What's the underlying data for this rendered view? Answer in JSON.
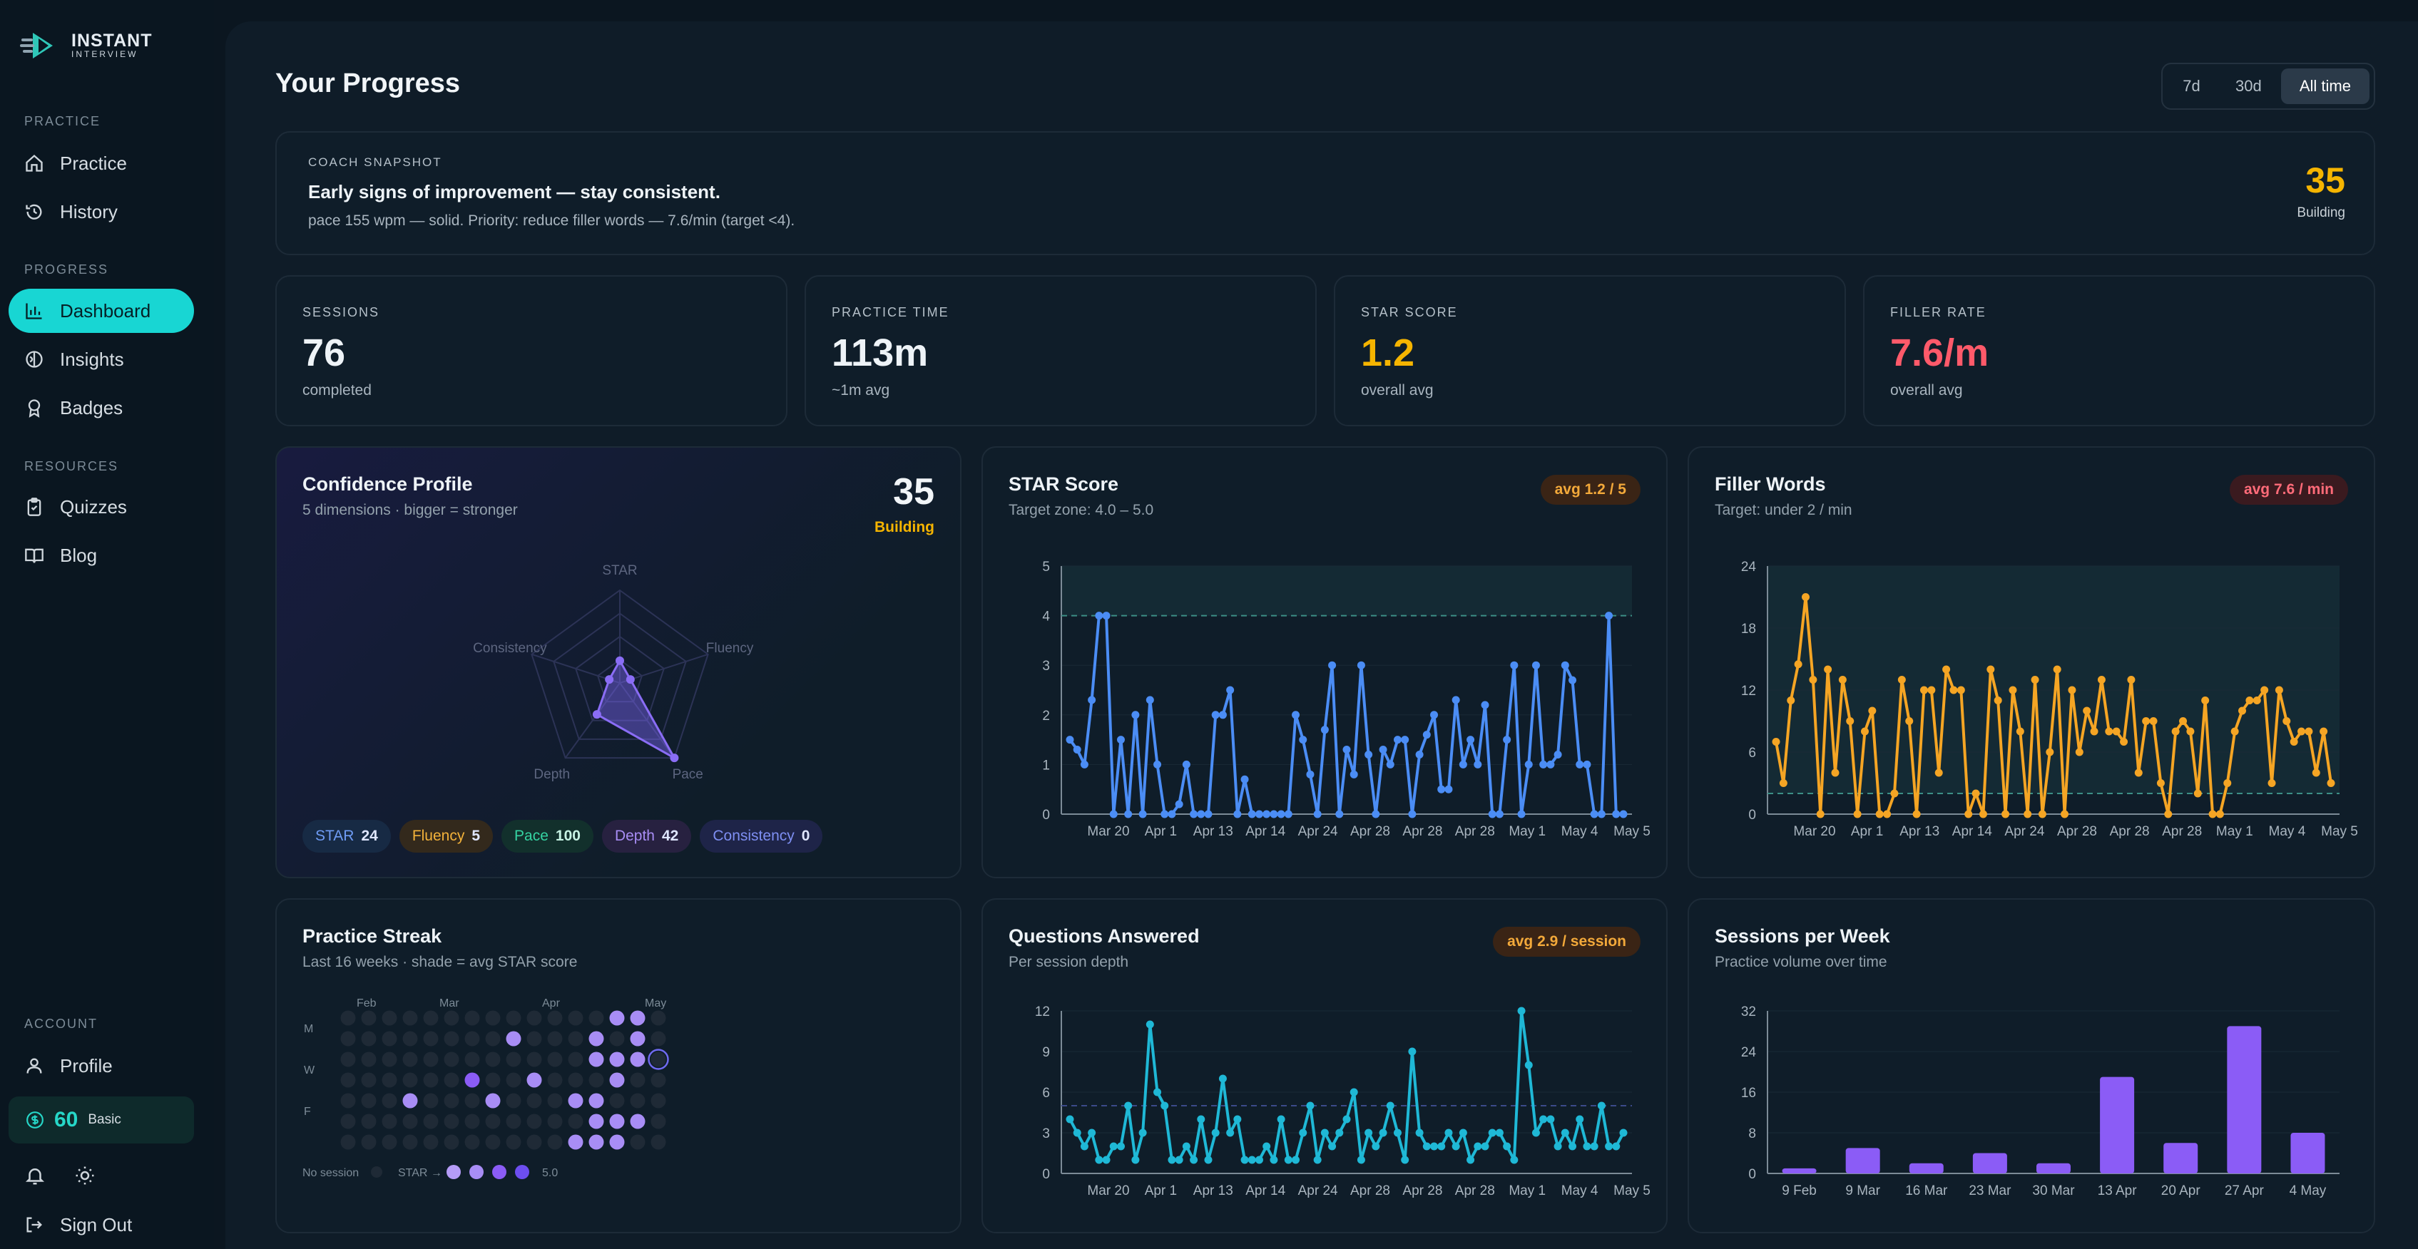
{
  "brand": {
    "name": "INSTANT",
    "sub": "INTERVIEW"
  },
  "sidebar": {
    "sections": {
      "practice": "PRACTICE",
      "progress": "PROGRESS",
      "resources": "RESOURCES",
      "account": "ACCOUNT"
    },
    "items": {
      "practice": "Practice",
      "history": "History",
      "dashboard": "Dashboard",
      "insights": "Insights",
      "badges": "Badges",
      "quizzes": "Quizzes",
      "blog": "Blog",
      "profile": "Profile",
      "signout": "Sign Out"
    },
    "credits": {
      "value": "60",
      "plan": "Basic"
    }
  },
  "header": {
    "title": "Your Progress",
    "ranges": [
      "7d",
      "30d",
      "All time"
    ],
    "active_range": "All time"
  },
  "snapshot": {
    "label": "COACH SNAPSHOT",
    "headline": "Early signs of improvement — stay consistent.",
    "detail": "pace 155 wpm — solid. Priority: reduce filler words — 7.6/min (target <4).",
    "score": "35",
    "score_label": "Building"
  },
  "stats": [
    {
      "label": "SESSIONS",
      "value": "76",
      "sub": "completed",
      "color": "#eef3f7"
    },
    {
      "label": "PRACTICE TIME",
      "value": "113m",
      "sub": "~1m avg",
      "color": "#eef3f7"
    },
    {
      "label": "STAR SCORE",
      "value": "1.2",
      "sub": "overall avg",
      "color": "#f5b400"
    },
    {
      "label": "FILLER RATE",
      "value": "7.6/m",
      "sub": "overall avg",
      "color": "#ff5a6a"
    }
  ],
  "confidence": {
    "title": "Confidence Profile",
    "subtitle": "5 dimensions · bigger = stronger",
    "score": "35",
    "score_label": "Building",
    "axes": [
      "STAR",
      "Fluency",
      "Pace",
      "Depth",
      "Consistency"
    ],
    "pills": [
      {
        "name": "STAR",
        "value": "24",
        "bg": "#172a44",
        "fg": "#6f9cf5"
      },
      {
        "name": "Fluency",
        "value": "5",
        "bg": "#33291c",
        "fg": "#f3b23a"
      },
      {
        "name": "Pace",
        "value": "100",
        "bg": "#12302c",
        "fg": "#35d3a2"
      },
      {
        "name": "Depth",
        "value": "42",
        "bg": "#272140",
        "fg": "#a88df5"
      },
      {
        "name": "Consistency",
        "value": "0",
        "bg": "#1e2448",
        "fg": "#7e8ff2"
      }
    ]
  },
  "chart_data": [
    {
      "type": "line",
      "title": "STAR Score",
      "subtitle": "Target zone: 4.0 – 5.0",
      "badge": "avg 1.2 / 5",
      "ylim": [
        0,
        5
      ],
      "yticks": [
        0,
        1,
        2,
        3,
        4,
        5
      ],
      "xticks": [
        "Mar 20",
        "Apr 1",
        "Apr 13",
        "Apr 14",
        "Apr 24",
        "Apr 28",
        "Apr 28",
        "Apr 28",
        "May 1",
        "May 4",
        "May 5"
      ],
      "target_line": 4,
      "values": [
        1.5,
        1.3,
        1,
        2.3,
        4,
        4,
        0,
        1.5,
        0,
        2,
        0,
        2.3,
        1,
        0,
        0,
        0.2,
        1,
        0,
        0,
        0,
        2,
        2,
        2.5,
        0,
        0.7,
        0,
        0,
        0,
        0,
        0,
        0,
        2,
        1.5,
        0.8,
        0,
        1.7,
        3,
        0,
        1.3,
        0.8,
        3,
        1.2,
        0,
        1.3,
        1,
        1.5,
        1.5,
        0,
        1.2,
        1.6,
        2,
        0.5,
        0.5,
        2.3,
        1,
        1.5,
        1,
        2.2,
        0,
        0,
        1.5,
        3,
        0,
        1,
        3,
        1,
        1,
        1.2,
        3,
        2.7,
        1,
        1,
        0,
        0,
        4,
        0,
        0
      ]
    },
    {
      "type": "line",
      "title": "Filler Words",
      "subtitle": "Target: under 2 / min",
      "badge": "avg 7.6 / min",
      "ylim": [
        0,
        24
      ],
      "yticks": [
        0,
        6,
        12,
        18,
        24
      ],
      "xticks": [
        "Mar 20",
        "Apr 1",
        "Apr 13",
        "Apr 14",
        "Apr 24",
        "Apr 28",
        "Apr 28",
        "Apr 28",
        "May 1",
        "May 4",
        "May 5"
      ],
      "target_line": 2,
      "values": [
        7,
        3,
        11,
        14.5,
        21,
        13,
        0,
        14,
        4,
        13,
        9,
        0,
        8,
        10,
        0,
        0,
        2,
        13,
        9,
        0,
        12,
        12,
        4,
        14,
        12,
        12,
        0,
        2,
        0,
        14,
        11,
        0,
        12,
        8,
        0,
        13,
        0,
        6,
        14,
        0,
        12,
        6,
        10,
        8,
        13,
        8,
        8,
        7,
        13,
        4,
        9,
        9,
        3,
        0,
        8,
        9,
        8,
        2,
        11,
        0,
        0,
        3,
        8,
        10,
        11,
        11,
        12,
        3,
        12,
        9,
        7,
        8,
        8,
        4,
        8,
        3
      ]
    },
    {
      "type": "line",
      "title": "Questions Answered",
      "subtitle": "Per session depth",
      "badge": "avg 2.9 / session",
      "ylim": [
        0,
        12
      ],
      "yticks": [
        0,
        3,
        6,
        9,
        12
      ],
      "xticks": [
        "Mar 20",
        "Apr 1",
        "Apr 13",
        "Apr 14",
        "Apr 24",
        "Apr 28",
        "Apr 28",
        "Apr 28",
        "May 1",
        "May 4",
        "May 5"
      ],
      "target_line": 5,
      "values": [
        4,
        3,
        2,
        3,
        1,
        1,
        2,
        2,
        5,
        1,
        3,
        11,
        6,
        5,
        1,
        1,
        2,
        1,
        4,
        1,
        3,
        7,
        3,
        4,
        1,
        1,
        1,
        2,
        1,
        4,
        1,
        1,
        3,
        5,
        1,
        3,
        2,
        3,
        4,
        6,
        1,
        3,
        2,
        3,
        5,
        3,
        1,
        9,
        3,
        2,
        2,
        2,
        3,
        2,
        3,
        1,
        2,
        2,
        3,
        3,
        2,
        1,
        12,
        8,
        3,
        4,
        4,
        2,
        3,
        2,
        4,
        2,
        2,
        5,
        2,
        2,
        3
      ]
    },
    {
      "type": "bar",
      "title": "Sessions per Week",
      "subtitle": "Practice volume over time",
      "ylim": [
        0,
        32
      ],
      "yticks": [
        0,
        8,
        16,
        24,
        32
      ],
      "categories": [
        "9 Feb",
        "9 Mar",
        "16 Mar",
        "23 Mar",
        "30 Mar",
        "13 Apr",
        "20 Apr",
        "27 Apr",
        "4 May"
      ],
      "values": [
        1,
        5,
        2,
        4,
        2,
        19,
        6,
        29,
        8
      ]
    }
  ],
  "streak": {
    "title": "Practice Streak",
    "subtitle": "Last 16 weeks · shade = avg STAR score",
    "months": [
      "Feb",
      "Mar",
      "Apr",
      "May"
    ],
    "days": [
      "M",
      "W",
      "F"
    ],
    "legend_none": "No session",
    "legend_star": "STAR →",
    "legend_max": "5.0",
    "cells": [
      [
        [
          0,
          5
        ],
        [
          0,
          6
        ],
        [
          0,
          7
        ],
        [
          0,
          8
        ],
        [
          0,
          9
        ],
        [
          0,
          10
        ],
        [
          0,
          11
        ],
        [
          0,
          12
        ],
        [
          0,
          13
        ],
        [
          0,
          14
        ],
        [
          0,
          15
        ],
        [
          0,
          16
        ]
      ],
      []
    ]
  }
}
